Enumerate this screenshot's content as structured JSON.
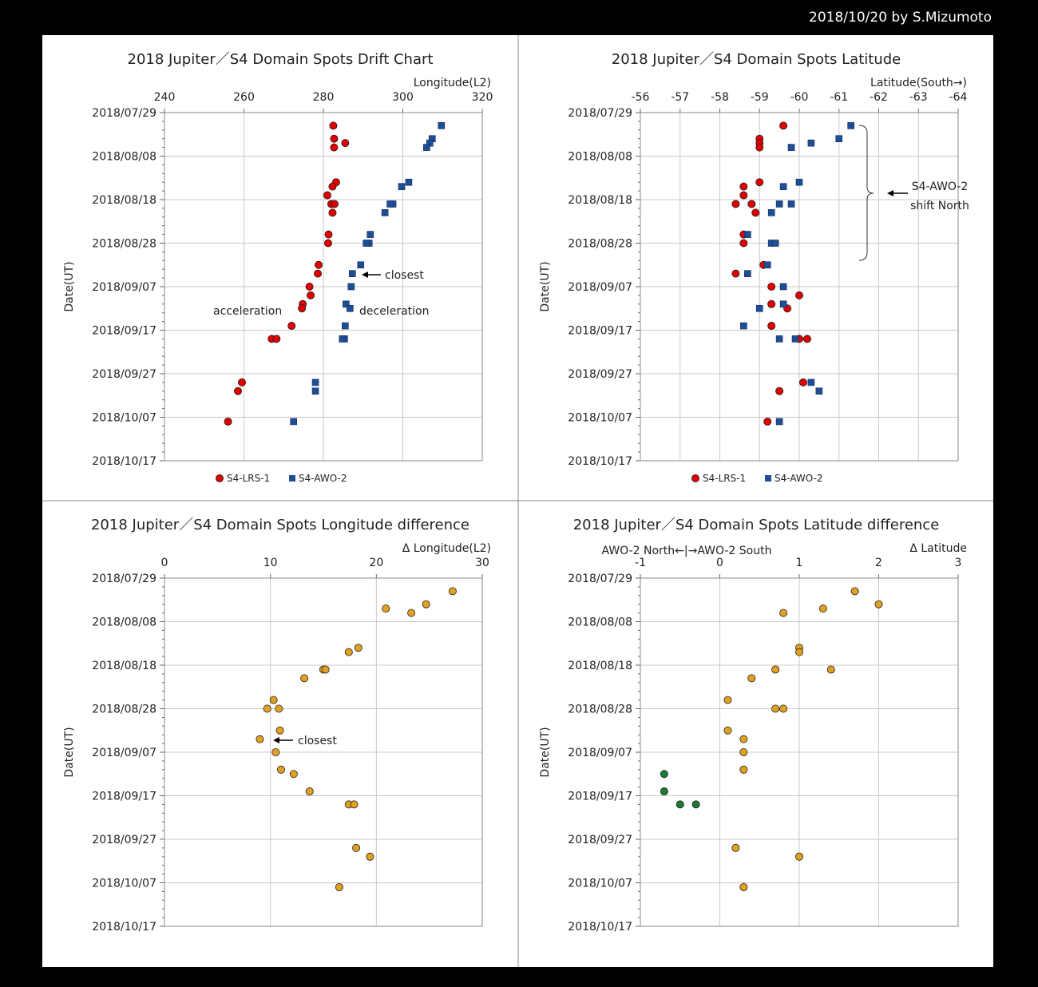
{
  "byline": "2018/10/20 by S.Mizumoto",
  "colors": {
    "lrs": "#e00000",
    "awo": "#1f4e96",
    "diff": "#e0a020",
    "diff_north": "#1a7a30",
    "grid": "#c8c8c8"
  },
  "chart_data": [
    {
      "id": "drift",
      "type": "scatter",
      "title": "2018 Jupiter／S4 Domain Spots Drift Chart",
      "xlabel": "Longitude(L2)",
      "ylabel": "Date(UT)",
      "xlim": [
        240,
        320
      ],
      "xticks": [
        "240",
        "260",
        "280",
        "300",
        "320"
      ],
      "ylim": [
        "2018/07/29",
        "2018/10/17"
      ],
      "yticks": [
        "2018/07/29",
        "2018/08/08",
        "2018/08/18",
        "2018/08/28",
        "2018/09/07",
        "2018/09/17",
        "2018/09/27",
        "2018/10/07",
        "2018/10/17"
      ],
      "legend": [
        "S4-LRS-1",
        "S4-AWO-2"
      ],
      "annotations": [
        "closest",
        "acceleration",
        "deceleration"
      ],
      "series": [
        {
          "name": "S4-LRS-1",
          "marker": "circle",
          "color": "#e00000",
          "points": [
            {
              "x": 282.5,
              "y": "2018/08/01"
            },
            {
              "x": 282.7,
              "y": "2018/08/04"
            },
            {
              "x": 285.5,
              "y": "2018/08/05"
            },
            {
              "x": 282.7,
              "y": "2018/08/06"
            },
            {
              "x": 283.2,
              "y": "2018/08/14"
            },
            {
              "x": 282.3,
              "y": "2018/08/15"
            },
            {
              "x": 281.0,
              "y": "2018/08/17"
            },
            {
              "x": 282.0,
              "y": "2018/08/19"
            },
            {
              "x": 282.8,
              "y": "2018/08/19"
            },
            {
              "x": 282.3,
              "y": "2018/08/21"
            },
            {
              "x": 281.3,
              "y": "2018/08/26"
            },
            {
              "x": 281.2,
              "y": "2018/08/28"
            },
            {
              "x": 278.8,
              "y": "2018/09/02"
            },
            {
              "x": 278.6,
              "y": "2018/09/04"
            },
            {
              "x": 276.5,
              "y": "2018/09/07"
            },
            {
              "x": 276.8,
              "y": "2018/09/09"
            },
            {
              "x": 274.8,
              "y": "2018/09/11"
            },
            {
              "x": 274.6,
              "y": "2018/09/12"
            },
            {
              "x": 272.0,
              "y": "2018/09/16"
            },
            {
              "x": 267.0,
              "y": "2018/09/19"
            },
            {
              "x": 268.2,
              "y": "2018/09/19"
            },
            {
              "x": 259.5,
              "y": "2018/09/29"
            },
            {
              "x": 258.5,
              "y": "2018/10/01"
            },
            {
              "x": 256.0,
              "y": "2018/10/08"
            }
          ]
        },
        {
          "name": "S4-AWO-2",
          "marker": "square",
          "color": "#1f4e96",
          "points": [
            {
              "x": 309.7,
              "y": "2018/08/01"
            },
            {
              "x": 307.4,
              "y": "2018/08/04"
            },
            {
              "x": 306.8,
              "y": "2018/08/05"
            },
            {
              "x": 306.0,
              "y": "2018/08/06"
            },
            {
              "x": 301.5,
              "y": "2018/08/14"
            },
            {
              "x": 299.7,
              "y": "2018/08/15"
            },
            {
              "x": 297.5,
              "y": "2018/08/19"
            },
            {
              "x": 296.8,
              "y": "2018/08/19"
            },
            {
              "x": 295.5,
              "y": "2018/08/21"
            },
            {
              "x": 291.8,
              "y": "2018/08/26"
            },
            {
              "x": 291.5,
              "y": "2018/08/28"
            },
            {
              "x": 290.8,
              "y": "2018/08/28"
            },
            {
              "x": 289.4,
              "y": "2018/09/02"
            },
            {
              "x": 287.3,
              "y": "2018/09/04"
            },
            {
              "x": 287.0,
              "y": "2018/09/07"
            },
            {
              "x": 285.7,
              "y": "2018/09/11"
            },
            {
              "x": 286.7,
              "y": "2018/09/12"
            },
            {
              "x": 285.5,
              "y": "2018/09/16"
            },
            {
              "x": 285.3,
              "y": "2018/09/19"
            },
            {
              "x": 284.8,
              "y": "2018/09/19"
            },
            {
              "x": 278.0,
              "y": "2018/09/29"
            },
            {
              "x": 278.0,
              "y": "2018/10/01"
            },
            {
              "x": 272.5,
              "y": "2018/10/08"
            }
          ]
        }
      ]
    },
    {
      "id": "latitude",
      "type": "scatter",
      "title": "2018 Jupiter／S4 Domain Spots Latitude",
      "xlabel": "Latitude(South→)",
      "ylabel": "Date(UT)",
      "xlim": [
        -56,
        -64
      ],
      "xticks": [
        "-56",
        "-57",
        "-58",
        "-59",
        "-60",
        "-61",
        "-62",
        "-63",
        "-64"
      ],
      "ylim": [
        "2018/07/29",
        "2018/10/17"
      ],
      "yticks": [
        "2018/07/29",
        "2018/08/08",
        "2018/08/18",
        "2018/08/28",
        "2018/09/07",
        "2018/09/17",
        "2018/09/27",
        "2018/10/07",
        "2018/10/17"
      ],
      "legend": [
        "S4-LRS-1",
        "S4-AWO-2"
      ],
      "annotations": [
        "S4-AWO-2",
        "shift North"
      ],
      "series": [
        {
          "name": "S4-LRS-1",
          "marker": "circle",
          "color": "#e00000",
          "points": [
            {
              "x": -59.6,
              "y": "2018/08/01"
            },
            {
              "x": -59.0,
              "y": "2018/08/04"
            },
            {
              "x": -59.0,
              "y": "2018/08/05"
            },
            {
              "x": -59.0,
              "y": "2018/08/06"
            },
            {
              "x": -59.0,
              "y": "2018/08/14"
            },
            {
              "x": -58.6,
              "y": "2018/08/15"
            },
            {
              "x": -58.6,
              "y": "2018/08/17"
            },
            {
              "x": -58.4,
              "y": "2018/08/19"
            },
            {
              "x": -58.8,
              "y": "2018/08/19"
            },
            {
              "x": -58.9,
              "y": "2018/08/21"
            },
            {
              "x": -58.6,
              "y": "2018/08/26"
            },
            {
              "x": -58.6,
              "y": "2018/08/28"
            },
            {
              "x": -59.1,
              "y": "2018/09/02"
            },
            {
              "x": -58.4,
              "y": "2018/09/04"
            },
            {
              "x": -59.3,
              "y": "2018/09/07"
            },
            {
              "x": -60.0,
              "y": "2018/09/09"
            },
            {
              "x": -59.3,
              "y": "2018/09/11"
            },
            {
              "x": -59.7,
              "y": "2018/09/12"
            },
            {
              "x": -59.3,
              "y": "2018/09/16"
            },
            {
              "x": -60.0,
              "y": "2018/09/19"
            },
            {
              "x": -60.2,
              "y": "2018/09/19"
            },
            {
              "x": -60.1,
              "y": "2018/09/29"
            },
            {
              "x": -59.5,
              "y": "2018/10/01"
            },
            {
              "x": -59.2,
              "y": "2018/10/08"
            }
          ]
        },
        {
          "name": "S4-AWO-2",
          "marker": "square",
          "color": "#1f4e96",
          "points": [
            {
              "x": -61.3,
              "y": "2018/08/01"
            },
            {
              "x": -61.0,
              "y": "2018/08/04"
            },
            {
              "x": -60.3,
              "y": "2018/08/05"
            },
            {
              "x": -59.8,
              "y": "2018/08/06"
            },
            {
              "x": -60.0,
              "y": "2018/08/14"
            },
            {
              "x": -59.6,
              "y": "2018/08/15"
            },
            {
              "x": -59.5,
              "y": "2018/08/19"
            },
            {
              "x": -59.8,
              "y": "2018/08/19"
            },
            {
              "x": -59.3,
              "y": "2018/08/21"
            },
            {
              "x": -58.7,
              "y": "2018/08/26"
            },
            {
              "x": -59.3,
              "y": "2018/08/28"
            },
            {
              "x": -59.4,
              "y": "2018/08/28"
            },
            {
              "x": -59.2,
              "y": "2018/09/02"
            },
            {
              "x": -58.7,
              "y": "2018/09/04"
            },
            {
              "x": -59.6,
              "y": "2018/09/07"
            },
            {
              "x": -59.6,
              "y": "2018/09/11"
            },
            {
              "x": -59.0,
              "y": "2018/09/12"
            },
            {
              "x": -58.6,
              "y": "2018/09/16"
            },
            {
              "x": -59.5,
              "y": "2018/09/19"
            },
            {
              "x": -59.9,
              "y": "2018/09/19"
            },
            {
              "x": -60.3,
              "y": "2018/09/29"
            },
            {
              "x": -60.5,
              "y": "2018/10/01"
            },
            {
              "x": -59.5,
              "y": "2018/10/08"
            }
          ]
        }
      ]
    },
    {
      "id": "londiff",
      "type": "scatter",
      "title": "2018 Jupiter／S4 Domain Spots Longitude difference",
      "xlabel": "Δ Longitude(L2)",
      "ylabel": "Date(UT)",
      "xlim": [
        0,
        30
      ],
      "xticks": [
        "0",
        "10",
        "20",
        "30"
      ],
      "ylim": [
        "2018/07/29",
        "2018/10/17"
      ],
      "yticks": [
        "2018/07/29",
        "2018/08/08",
        "2018/08/18",
        "2018/08/28",
        "2018/09/07",
        "2018/09/17",
        "2018/09/27",
        "2018/10/07",
        "2018/10/17"
      ],
      "annotations": [
        "closest"
      ],
      "series": [
        {
          "marker": "circle",
          "color": "#e0a020",
          "points": [
            {
              "x": 27.2,
              "y": "2018/08/01"
            },
            {
              "x": 24.7,
              "y": "2018/08/04"
            },
            {
              "x": 20.9,
              "y": "2018/08/05"
            },
            {
              "x": 23.3,
              "y": "2018/08/06"
            },
            {
              "x": 18.3,
              "y": "2018/08/14"
            },
            {
              "x": 17.4,
              "y": "2018/08/15"
            },
            {
              "x": 15.0,
              "y": "2018/08/19"
            },
            {
              "x": 15.2,
              "y": "2018/08/19"
            },
            {
              "x": 13.2,
              "y": "2018/08/21"
            },
            {
              "x": 10.3,
              "y": "2018/08/26"
            },
            {
              "x": 9.7,
              "y": "2018/08/28"
            },
            {
              "x": 10.8,
              "y": "2018/08/28"
            },
            {
              "x": 10.9,
              "y": "2018/09/02"
            },
            {
              "x": 9.0,
              "y": "2018/09/04"
            },
            {
              "x": 10.5,
              "y": "2018/09/07"
            },
            {
              "x": 11.0,
              "y": "2018/09/11"
            },
            {
              "x": 12.2,
              "y": "2018/09/12"
            },
            {
              "x": 13.7,
              "y": "2018/09/16"
            },
            {
              "x": 17.4,
              "y": "2018/09/19"
            },
            {
              "x": 17.9,
              "y": "2018/09/19"
            },
            {
              "x": 18.1,
              "y": "2018/09/29"
            },
            {
              "x": 19.4,
              "y": "2018/10/01"
            },
            {
              "x": 16.5,
              "y": "2018/10/08"
            }
          ]
        }
      ]
    },
    {
      "id": "latdiff",
      "type": "scatter",
      "title": "2018 Jupiter／S4 Domain Spots Latitude difference",
      "xlabel": "Δ Latitude",
      "sublabel": "AWO-2 North←|→AWO-2 South",
      "ylabel": "Date(UT)",
      "xlim": [
        -1,
        3
      ],
      "xticks": [
        "-1",
        "0",
        "1",
        "2",
        "3"
      ],
      "ylim": [
        "2018/07/29",
        "2018/10/17"
      ],
      "yticks": [
        "2018/07/29",
        "2018/08/08",
        "2018/08/18",
        "2018/08/28",
        "2018/09/07",
        "2018/09/17",
        "2018/09/27",
        "2018/10/07",
        "2018/10/17"
      ],
      "series": [
        {
          "marker": "circle",
          "color": "#e0a020",
          "points": [
            {
              "x": 1.7,
              "y": "2018/08/01"
            },
            {
              "x": 2.0,
              "y": "2018/08/04"
            },
            {
              "x": 1.3,
              "y": "2018/08/05"
            },
            {
              "x": 0.8,
              "y": "2018/08/06"
            },
            {
              "x": 1.0,
              "y": "2018/08/14"
            },
            {
              "x": 1.0,
              "y": "2018/08/15"
            },
            {
              "x": 0.7,
              "y": "2018/08/19"
            },
            {
              "x": 1.4,
              "y": "2018/08/19"
            },
            {
              "x": 0.4,
              "y": "2018/08/21"
            },
            {
              "x": 0.1,
              "y": "2018/08/26"
            },
            {
              "x": 0.7,
              "y": "2018/08/28"
            },
            {
              "x": 0.8,
              "y": "2018/08/28"
            },
            {
              "x": 0.1,
              "y": "2018/09/02"
            },
            {
              "x": 0.3,
              "y": "2018/09/04"
            },
            {
              "x": 0.3,
              "y": "2018/09/07"
            },
            {
              "x": 0.3,
              "y": "2018/09/11"
            },
            {
              "x": 0.2,
              "y": "2018/09/29"
            },
            {
              "x": 1.0,
              "y": "2018/10/01"
            },
            {
              "x": 0.3,
              "y": "2018/10/08"
            }
          ]
        },
        {
          "marker": "circle",
          "color": "#1a7a30",
          "points": [
            {
              "x": -0.7,
              "y": "2018/09/12"
            },
            {
              "x": -0.7,
              "y": "2018/09/16"
            },
            {
              "x": -0.5,
              "y": "2018/09/19"
            },
            {
              "x": -0.3,
              "y": "2018/09/19"
            }
          ]
        }
      ]
    }
  ]
}
